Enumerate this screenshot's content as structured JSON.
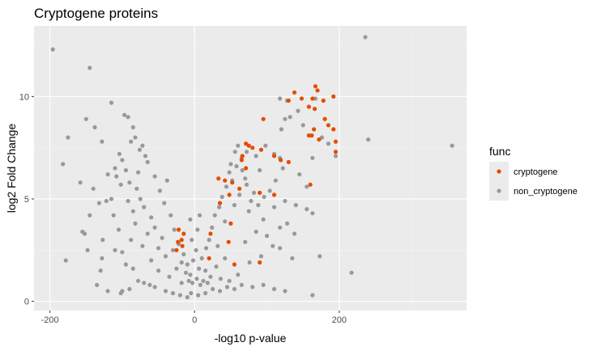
{
  "chart_data": {
    "type": "scatter",
    "title": "Cryptogene proteins",
    "xlabel": "-log10 p-value",
    "ylabel": "log2 Fold Change",
    "xlim": [
      -222,
      376
    ],
    "ylim": [
      -0.45,
      13.45
    ],
    "x_ticks": [
      -200,
      0,
      200
    ],
    "x_tick_labels": [
      "-200",
      "0",
      "200"
    ],
    "y_ticks": [
      0,
      5,
      10
    ],
    "y_tick_labels": [
      "0",
      "5",
      "10"
    ],
    "grid": true,
    "legend": {
      "title": "func",
      "position": "right",
      "entries": [
        "cryptogene",
        "non_cryptogene"
      ]
    },
    "colors": {
      "panel": "#ebebeb",
      "grid_major": "#ffffff",
      "grid_minor": "#f2f2f2",
      "non_cryptogene": "#999999",
      "cryptogene": "#e64b00"
    },
    "series": [
      {
        "name": "non_cryptogene",
        "color": "#999999",
        "points": [
          [
            -196,
            12.3
          ],
          [
            -145,
            11.4
          ],
          [
            -115,
            9.7
          ],
          [
            -150,
            8.9
          ],
          [
            -138,
            8.5
          ],
          [
            -175,
            8.0
          ],
          [
            -128,
            7.8
          ],
          [
            -182,
            6.7
          ],
          [
            -158,
            5.8
          ],
          [
            -140,
            5.5
          ],
          [
            -132,
            4.8
          ],
          [
            -145,
            4.2
          ],
          [
            -155,
            3.4
          ],
          [
            -152,
            3.3
          ],
          [
            -127,
            3.0
          ],
          [
            -148,
            2.5
          ],
          [
            -128,
            2.1
          ],
          [
            -178,
            2.0
          ],
          [
            -130,
            1.5
          ],
          [
            -120,
            0.5
          ],
          [
            -135,
            0.8
          ],
          [
            -100,
            0.5
          ],
          [
            -102,
            0.4
          ],
          [
            -90,
            0.6
          ],
          [
            -110,
            2.5
          ],
          [
            -100,
            2.4
          ],
          [
            -97,
            9.1
          ],
          [
            -92,
            9.0
          ],
          [
            -85,
            8.5
          ],
          [
            -82,
            8.0
          ],
          [
            -72,
            7.6
          ],
          [
            -68,
            7.1
          ],
          [
            -100,
            6.9
          ],
          [
            -95,
            6.4
          ],
          [
            -120,
            6.2
          ],
          [
            -108,
            6.1
          ],
          [
            -115,
            5.0
          ],
          [
            -122,
            4.9
          ],
          [
            -112,
            4.2
          ],
          [
            -105,
            3.5
          ],
          [
            -88,
            3.0
          ],
          [
            -95,
            1.8
          ],
          [
            -85,
            1.6
          ],
          [
            -78,
            1.0
          ],
          [
            -70,
            0.9
          ],
          [
            -62,
            0.8
          ],
          [
            -55,
            0.7
          ],
          [
            -40,
            0.5
          ],
          [
            -30,
            0.4
          ],
          [
            -20,
            0.3
          ],
          [
            -10,
            0.2
          ],
          [
            -5,
            0.4
          ],
          [
            5,
            0.3
          ],
          [
            15,
            0.4
          ],
          [
            25,
            0.6
          ],
          [
            35,
            0.5
          ],
          [
            45,
            0.7
          ],
          [
            55,
            0.6
          ],
          [
            65,
            0.8
          ],
          [
            80,
            0.7
          ],
          [
            95,
            0.8
          ],
          [
            110,
            0.6
          ],
          [
            125,
            0.5
          ],
          [
            163,
            0.3
          ],
          [
            217,
            1.4
          ],
          [
            173,
            2.2
          ],
          [
            135,
            2.1
          ],
          [
            118,
            2.6
          ],
          [
            100,
            3.2
          ],
          [
            85,
            3.4
          ],
          [
            70,
            2.9
          ],
          [
            95,
            4.0
          ],
          [
            110,
            4.6
          ],
          [
            125,
            4.9
          ],
          [
            140,
            4.7
          ],
          [
            155,
            4.5
          ],
          [
            163,
            4.3
          ],
          [
            155,
            5.6
          ],
          [
            145,
            6.2
          ],
          [
            122,
            6.5
          ],
          [
            110,
            7.2
          ],
          [
            98,
            7.6
          ],
          [
            120,
            8.4
          ],
          [
            128,
            9.8
          ],
          [
            118,
            9.9
          ],
          [
            125,
            8.9
          ],
          [
            143,
            9.3
          ],
          [
            150,
            8.6
          ],
          [
            132,
            9.0
          ],
          [
            167,
            9.9
          ],
          [
            176,
            8.0
          ],
          [
            185,
            7.7
          ],
          [
            195,
            7.1
          ],
          [
            163,
            7.0
          ],
          [
            118,
            7.0
          ],
          [
            85,
            7.1
          ],
          [
            72,
            7.3
          ],
          [
            65,
            7.0
          ],
          [
            58,
            6.6
          ],
          [
            52,
            5.9
          ],
          [
            48,
            6.3
          ],
          [
            62,
            5.2
          ],
          [
            75,
            4.4
          ],
          [
            82,
            5.3
          ],
          [
            90,
            6.4
          ],
          [
            70,
            6.0
          ],
          [
            55,
            4.7
          ],
          [
            42,
            3.9
          ],
          [
            32,
            2.7
          ],
          [
            42,
            2.1
          ],
          [
            30,
            1.7
          ],
          [
            22,
            1.2
          ],
          [
            15,
            1.5
          ],
          [
            12,
            1.0
          ],
          [
            8,
            0.8
          ],
          [
            -8,
            1.0
          ],
          [
            -12,
            1.4
          ],
          [
            -18,
            1.9
          ],
          [
            -25,
            1.6
          ],
          [
            -30,
            2.5
          ],
          [
            -40,
            2.2
          ],
          [
            -45,
            3.1
          ],
          [
            -50,
            2.6
          ],
          [
            -55,
            3.6
          ],
          [
            -60,
            4.1
          ],
          [
            -65,
            3.3
          ],
          [
            -70,
            4.6
          ],
          [
            -75,
            5.0
          ],
          [
            -80,
            5.5
          ],
          [
            -85,
            4.4
          ],
          [
            -90,
            5.8
          ],
          [
            -78,
            6.3
          ],
          [
            -65,
            6.8
          ],
          [
            -55,
            6.1
          ],
          [
            -48,
            5.4
          ],
          [
            -42,
            4.8
          ],
          [
            -38,
            5.9
          ],
          [
            -33,
            4.2
          ],
          [
            -28,
            3.5
          ],
          [
            -22,
            2.8
          ],
          [
            -15,
            2.3
          ],
          [
            -10,
            1.8
          ],
          [
            -6,
            1.3
          ],
          [
            -3,
            0.9
          ],
          [
            3,
            1.1
          ],
          [
            6,
            1.6
          ],
          [
            10,
            2.1
          ],
          [
            16,
            2.6
          ],
          [
            20,
            3.0
          ],
          [
            24,
            3.6
          ],
          [
            28,
            4.2
          ],
          [
            34,
            4.6
          ],
          [
            38,
            5.1
          ],
          [
            44,
            5.6
          ],
          [
            50,
            6.7
          ],
          [
            56,
            7.3
          ],
          [
            60,
            7.6
          ],
          [
            66,
            6.4
          ],
          [
            72,
            5.7
          ],
          [
            78,
            4.9
          ],
          [
            88,
            4.7
          ],
          [
            96,
            5.1
          ],
          [
            104,
            5.4
          ],
          [
            112,
            5.9
          ],
          [
            118,
            3.6
          ],
          [
            128,
            3.8
          ],
          [
            138,
            3.3
          ],
          [
            108,
            2.7
          ],
          [
            92,
            2.2
          ],
          [
            76,
            1.9
          ],
          [
            60,
            1.3
          ],
          [
            48,
            1.0
          ],
          [
            36,
            1.1
          ],
          [
            -35,
            1.2
          ],
          [
            -50,
            1.5
          ],
          [
            -60,
            2.0
          ],
          [
            -72,
            2.7
          ],
          [
            -82,
            3.8
          ],
          [
            -92,
            4.9
          ],
          [
            -102,
            5.7
          ],
          [
            -110,
            6.5
          ],
          [
            -104,
            7.2
          ],
          [
            -88,
            7.8
          ],
          [
            -76,
            7.4
          ],
          [
            236,
            12.9
          ],
          [
            240,
            7.9
          ],
          [
            356,
            7.6
          ],
          [
            -18,
            0.9
          ],
          [
            18,
            0.9
          ],
          [
            -2,
            2.0
          ],
          [
            2,
            2.5
          ],
          [
            -4,
            3.0
          ],
          [
            4,
            3.5
          ],
          [
            -6,
            4.0
          ],
          [
            7,
            4.2
          ]
        ]
      },
      {
        "name": "cryptogene",
        "color": "#e64b00",
        "points": [
          [
            138,
            10.2
          ],
          [
            148,
            9.9
          ],
          [
            163,
            9.9
          ],
          [
            167,
            10.5
          ],
          [
            170,
            10.3
          ],
          [
            178,
            9.8
          ],
          [
            192,
            10.0
          ],
          [
            130,
            9.8
          ],
          [
            158,
            9.5
          ],
          [
            166,
            9.4
          ],
          [
            180,
            8.9
          ],
          [
            185,
            8.6
          ],
          [
            192,
            8.4
          ],
          [
            165,
            8.4
          ],
          [
            158,
            8.1
          ],
          [
            162,
            8.1
          ],
          [
            172,
            7.9
          ],
          [
            195,
            7.8
          ],
          [
            195,
            7.3
          ],
          [
            95,
            8.9
          ],
          [
            71,
            7.7
          ],
          [
            75,
            7.6
          ],
          [
            80,
            7.5
          ],
          [
            92,
            7.4
          ],
          [
            66,
            7.1
          ],
          [
            110,
            7.1
          ],
          [
            119,
            6.9
          ],
          [
            130,
            6.8
          ],
          [
            65,
            6.9
          ],
          [
            71,
            6.5
          ],
          [
            33,
            6.0
          ],
          [
            42,
            5.9
          ],
          [
            52,
            5.8
          ],
          [
            62,
            5.5
          ],
          [
            48,
            5.2
          ],
          [
            90,
            5.3
          ],
          [
            110,
            5.2
          ],
          [
            160,
            5.7
          ],
          [
            35,
            4.8
          ],
          [
            50,
            3.8
          ],
          [
            22,
            3.3
          ],
          [
            47,
            2.9
          ],
          [
            20,
            2.1
          ],
          [
            55,
            1.8
          ],
          [
            90,
            1.9
          ],
          [
            -22,
            3.5
          ],
          [
            -15,
            3.3
          ],
          [
            -18,
            3.0
          ],
          [
            -23,
            2.9
          ],
          [
            -17,
            2.7
          ],
          [
            -25,
            2.5
          ]
        ]
      }
    ]
  }
}
